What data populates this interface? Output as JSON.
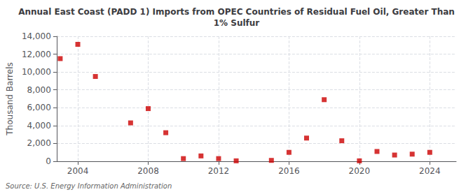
{
  "chart_data": {
    "type": "scatter",
    "title": "Annual East Coast (PADD 1) Imports from OPEC Countries of Residual Fuel Oil, Greater Than\n1% Sulfur",
    "ylabel": "Thousand Barrels",
    "annotations": [
      "Source: U.S. Energy Information Administration"
    ],
    "color": "#cc0000",
    "marker": "square",
    "grid": true,
    "x": [
      2003,
      2004,
      2005,
      2007,
      2008,
      2009,
      2010,
      2011,
      2012,
      2013,
      2015,
      2016,
      2017,
      2018,
      2019,
      2020,
      2021,
      2022,
      2023,
      2024
    ],
    "values": [
      11500,
      13100,
      9500,
      4300,
      5900,
      3200,
      300,
      600,
      300,
      50,
      100,
      1000,
      2600,
      6900,
      2300,
      50,
      1100,
      700,
      800,
      1000
    ],
    "xlim": [
      2002.8,
      2025.5
    ],
    "xticks": [
      2004,
      2008,
      2012,
      2016,
      2020,
      2024
    ],
    "ylim": [
      0,
      14000
    ],
    "yticks": [
      0,
      {
        "value": 2000,
        "label": "2,000"
      },
      {
        "value": 4000,
        "label": "4,000"
      },
      {
        "value": 6000,
        "label": "6,000"
      },
      {
        "value": 8000,
        "label": "8,000"
      },
      {
        "value": 10000,
        "label": "10,000"
      },
      {
        "value": 12000,
        "label": "12,000"
      },
      {
        "value": 14000,
        "label": "14,000"
      }
    ]
  }
}
